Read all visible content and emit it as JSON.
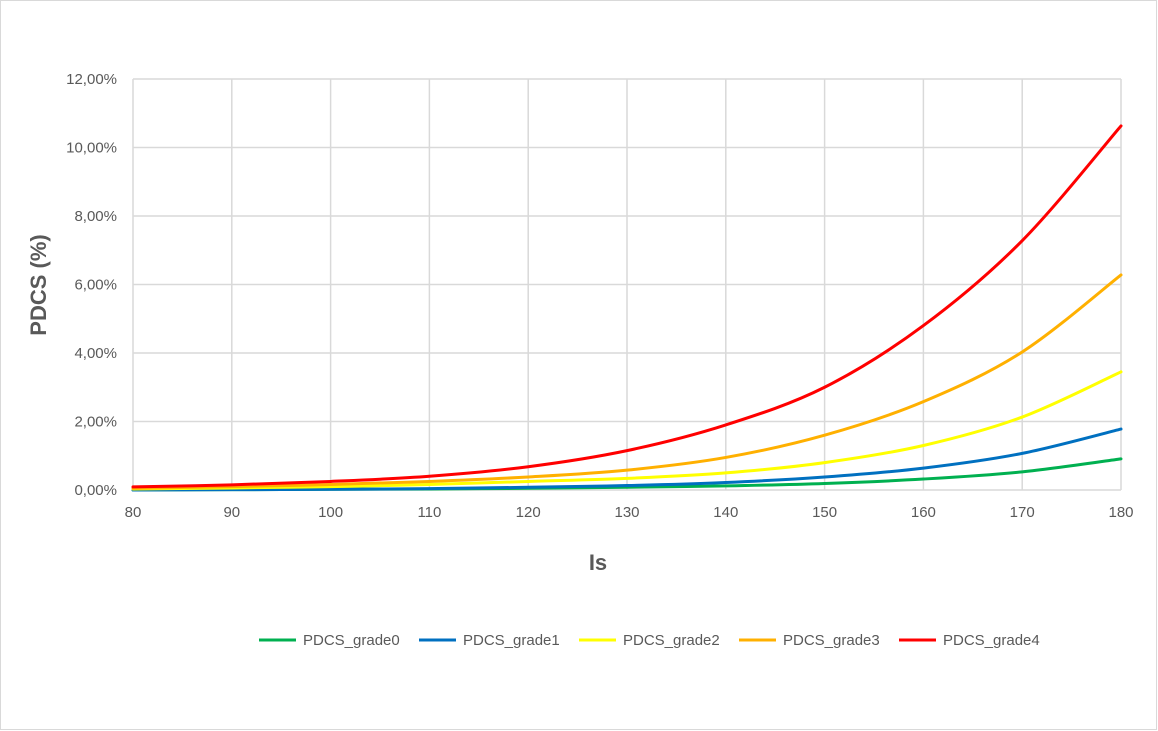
{
  "chart_data": {
    "type": "line",
    "title": "",
    "xlabel": "Is",
    "ylabel": "PDCS (%)",
    "xlim": [
      80,
      180
    ],
    "ylim": [
      0,
      0.12
    ],
    "x_ticks": [
      80,
      90,
      100,
      110,
      120,
      130,
      140,
      150,
      160,
      170,
      180
    ],
    "y_ticks": [
      0,
      0.02,
      0.04,
      0.06,
      0.08,
      0.1,
      0.12
    ],
    "x_tick_labels": [
      "80",
      "90",
      "100",
      "110",
      "120",
      "130",
      "140",
      "150",
      "160",
      "170",
      "180"
    ],
    "y_tick_labels": [
      "0,00%",
      "2,00%",
      "4,00%",
      "6,00%",
      "8,00%",
      "10,00%",
      "12,00%"
    ],
    "grid": true,
    "legend_position": "bottom",
    "x": [
      80,
      90,
      100,
      110,
      120,
      130,
      140,
      150,
      160,
      170,
      180
    ],
    "series": [
      {
        "name": "PDCS_grade0",
        "color": "#00b050",
        "values": [
          0.0,
          0.0001,
          0.0002,
          0.0003,
          0.0005,
          0.0008,
          0.0012,
          0.0019,
          0.0032,
          0.0053,
          0.0091
        ]
      },
      {
        "name": "PDCS_grade1",
        "color": "#0070c0",
        "values": [
          0.0,
          0.0001,
          0.0002,
          0.0004,
          0.0008,
          0.0013,
          0.0022,
          0.0038,
          0.0064,
          0.0107,
          0.0178
        ]
      },
      {
        "name": "PDCS_grade2",
        "color": "#ffff00",
        "values": [
          0.0003,
          0.0006,
          0.001,
          0.0016,
          0.0025,
          0.0034,
          0.005,
          0.008,
          0.013,
          0.0213,
          0.0345
        ]
      },
      {
        "name": "PDCS_grade3",
        "color": "#ffb000",
        "values": [
          0.0005,
          0.001,
          0.0016,
          0.0025,
          0.0038,
          0.0058,
          0.0095,
          0.016,
          0.0258,
          0.0403,
          0.0628
        ]
      },
      {
        "name": "PDCS_grade4",
        "color": "#ff0000",
        "values": [
          0.0009,
          0.0015,
          0.0025,
          0.004,
          0.0068,
          0.0115,
          0.019,
          0.03,
          0.048,
          0.0728,
          0.1063
        ]
      }
    ]
  },
  "style": {
    "grid_color": "#d9d9d9",
    "axis_color": "#d9d9d9",
    "text_color": "#595959"
  }
}
